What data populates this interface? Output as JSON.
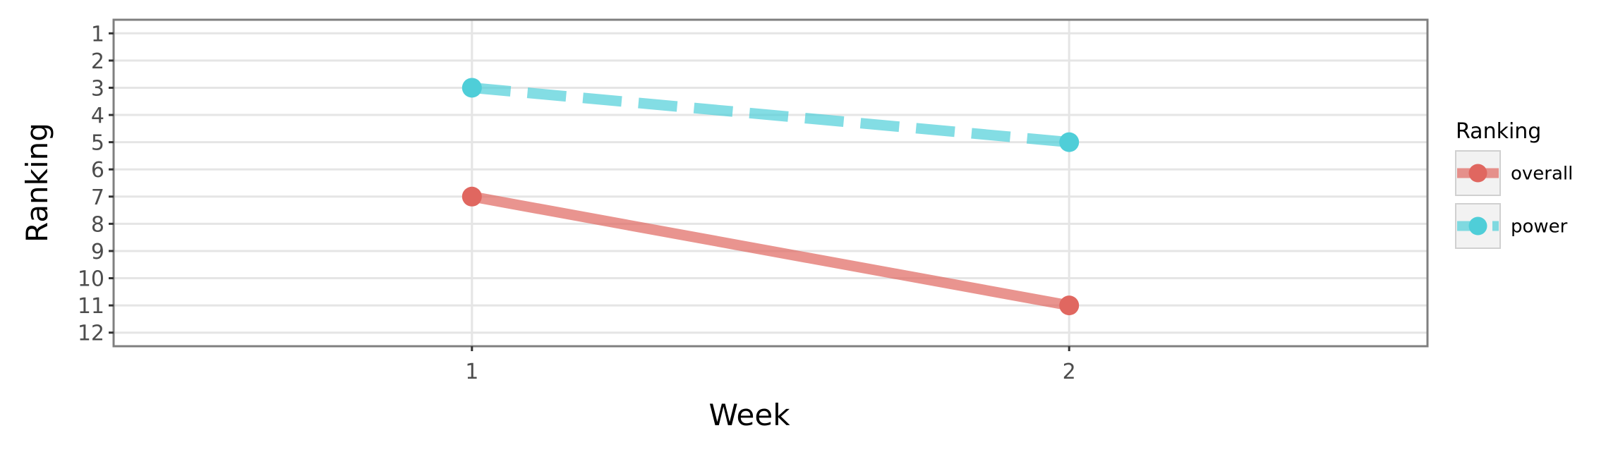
{
  "chart_data": {
    "type": "line",
    "xlabel": "Week",
    "ylabel": "Ranking",
    "x": [
      1,
      2
    ],
    "x_ticks": [
      1,
      2
    ],
    "xlim": [
      0.4,
      2.6
    ],
    "ylim": [
      12.5,
      0.5
    ],
    "y_reversed": true,
    "y_ticks": [
      1,
      2,
      3,
      4,
      5,
      6,
      7,
      8,
      9,
      10,
      11,
      12
    ],
    "grid": true,
    "legend": {
      "title": "Ranking",
      "position": "right"
    },
    "series": [
      {
        "name": "overall",
        "values": [
          7,
          11
        ],
        "color": "#E06760",
        "line_style": "solid"
      },
      {
        "name": "power",
        "values": [
          3,
          5
        ],
        "color": "#4FCED8",
        "line_style": "dashed"
      }
    ]
  }
}
